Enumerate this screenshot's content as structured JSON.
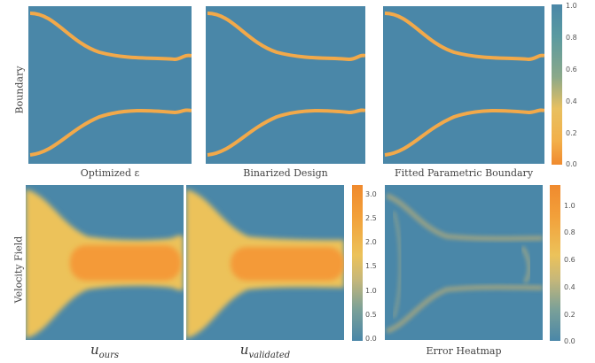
{
  "row_labels": [
    "Boundary",
    "Velocity Field"
  ],
  "chart_data": [
    {
      "type": "heatmap",
      "title": "Optimized ε",
      "panel": "optimized"
    },
    {
      "type": "heatmap",
      "title": "Binarized Design",
      "panel": "binarized"
    },
    {
      "type": "heatmap",
      "title": "Fitted Parametric Boundary",
      "panel": "fitted"
    },
    {
      "type": "heatmap",
      "title": "u_ours",
      "panel": "u_ours"
    },
    {
      "type": "heatmap",
      "title": "u_validated",
      "panel": "u_validated"
    },
    {
      "type": "heatmap",
      "title": "Error Heatmap",
      "panel": "error"
    }
  ],
  "captions": {
    "top1": "Optimized ε",
    "top2": "Binarized Design",
    "top3": "Fitted Parametric Boundary",
    "bot1_main": "u",
    "bot1_sub": "ours",
    "bot2_main": "u",
    "bot2_sub": "validated",
    "bot3": "Error Heatmap"
  },
  "colorbars": {
    "top": {
      "min": 0.0,
      "max": 1.0,
      "ticks": [
        "1.0",
        "0.8",
        "0.6",
        "0.4",
        "0.2",
        "0.0"
      ]
    },
    "velocity": {
      "min": 0.0,
      "max": 3.0,
      "ticks": [
        "3.0",
        "2.5",
        "2.0",
        "1.5",
        "1.0",
        "0.5",
        "0.0"
      ]
    },
    "error": {
      "min": 0.0,
      "max": 1.0,
      "ticks": [
        "1.0",
        "0.8",
        "0.6",
        "0.4",
        "0.2",
        "0.0"
      ]
    }
  },
  "colors": {
    "low": "#f08a2e",
    "mid": "#f2c14e",
    "high": "#4a87a8",
    "teal": "#5e9a9a"
  }
}
